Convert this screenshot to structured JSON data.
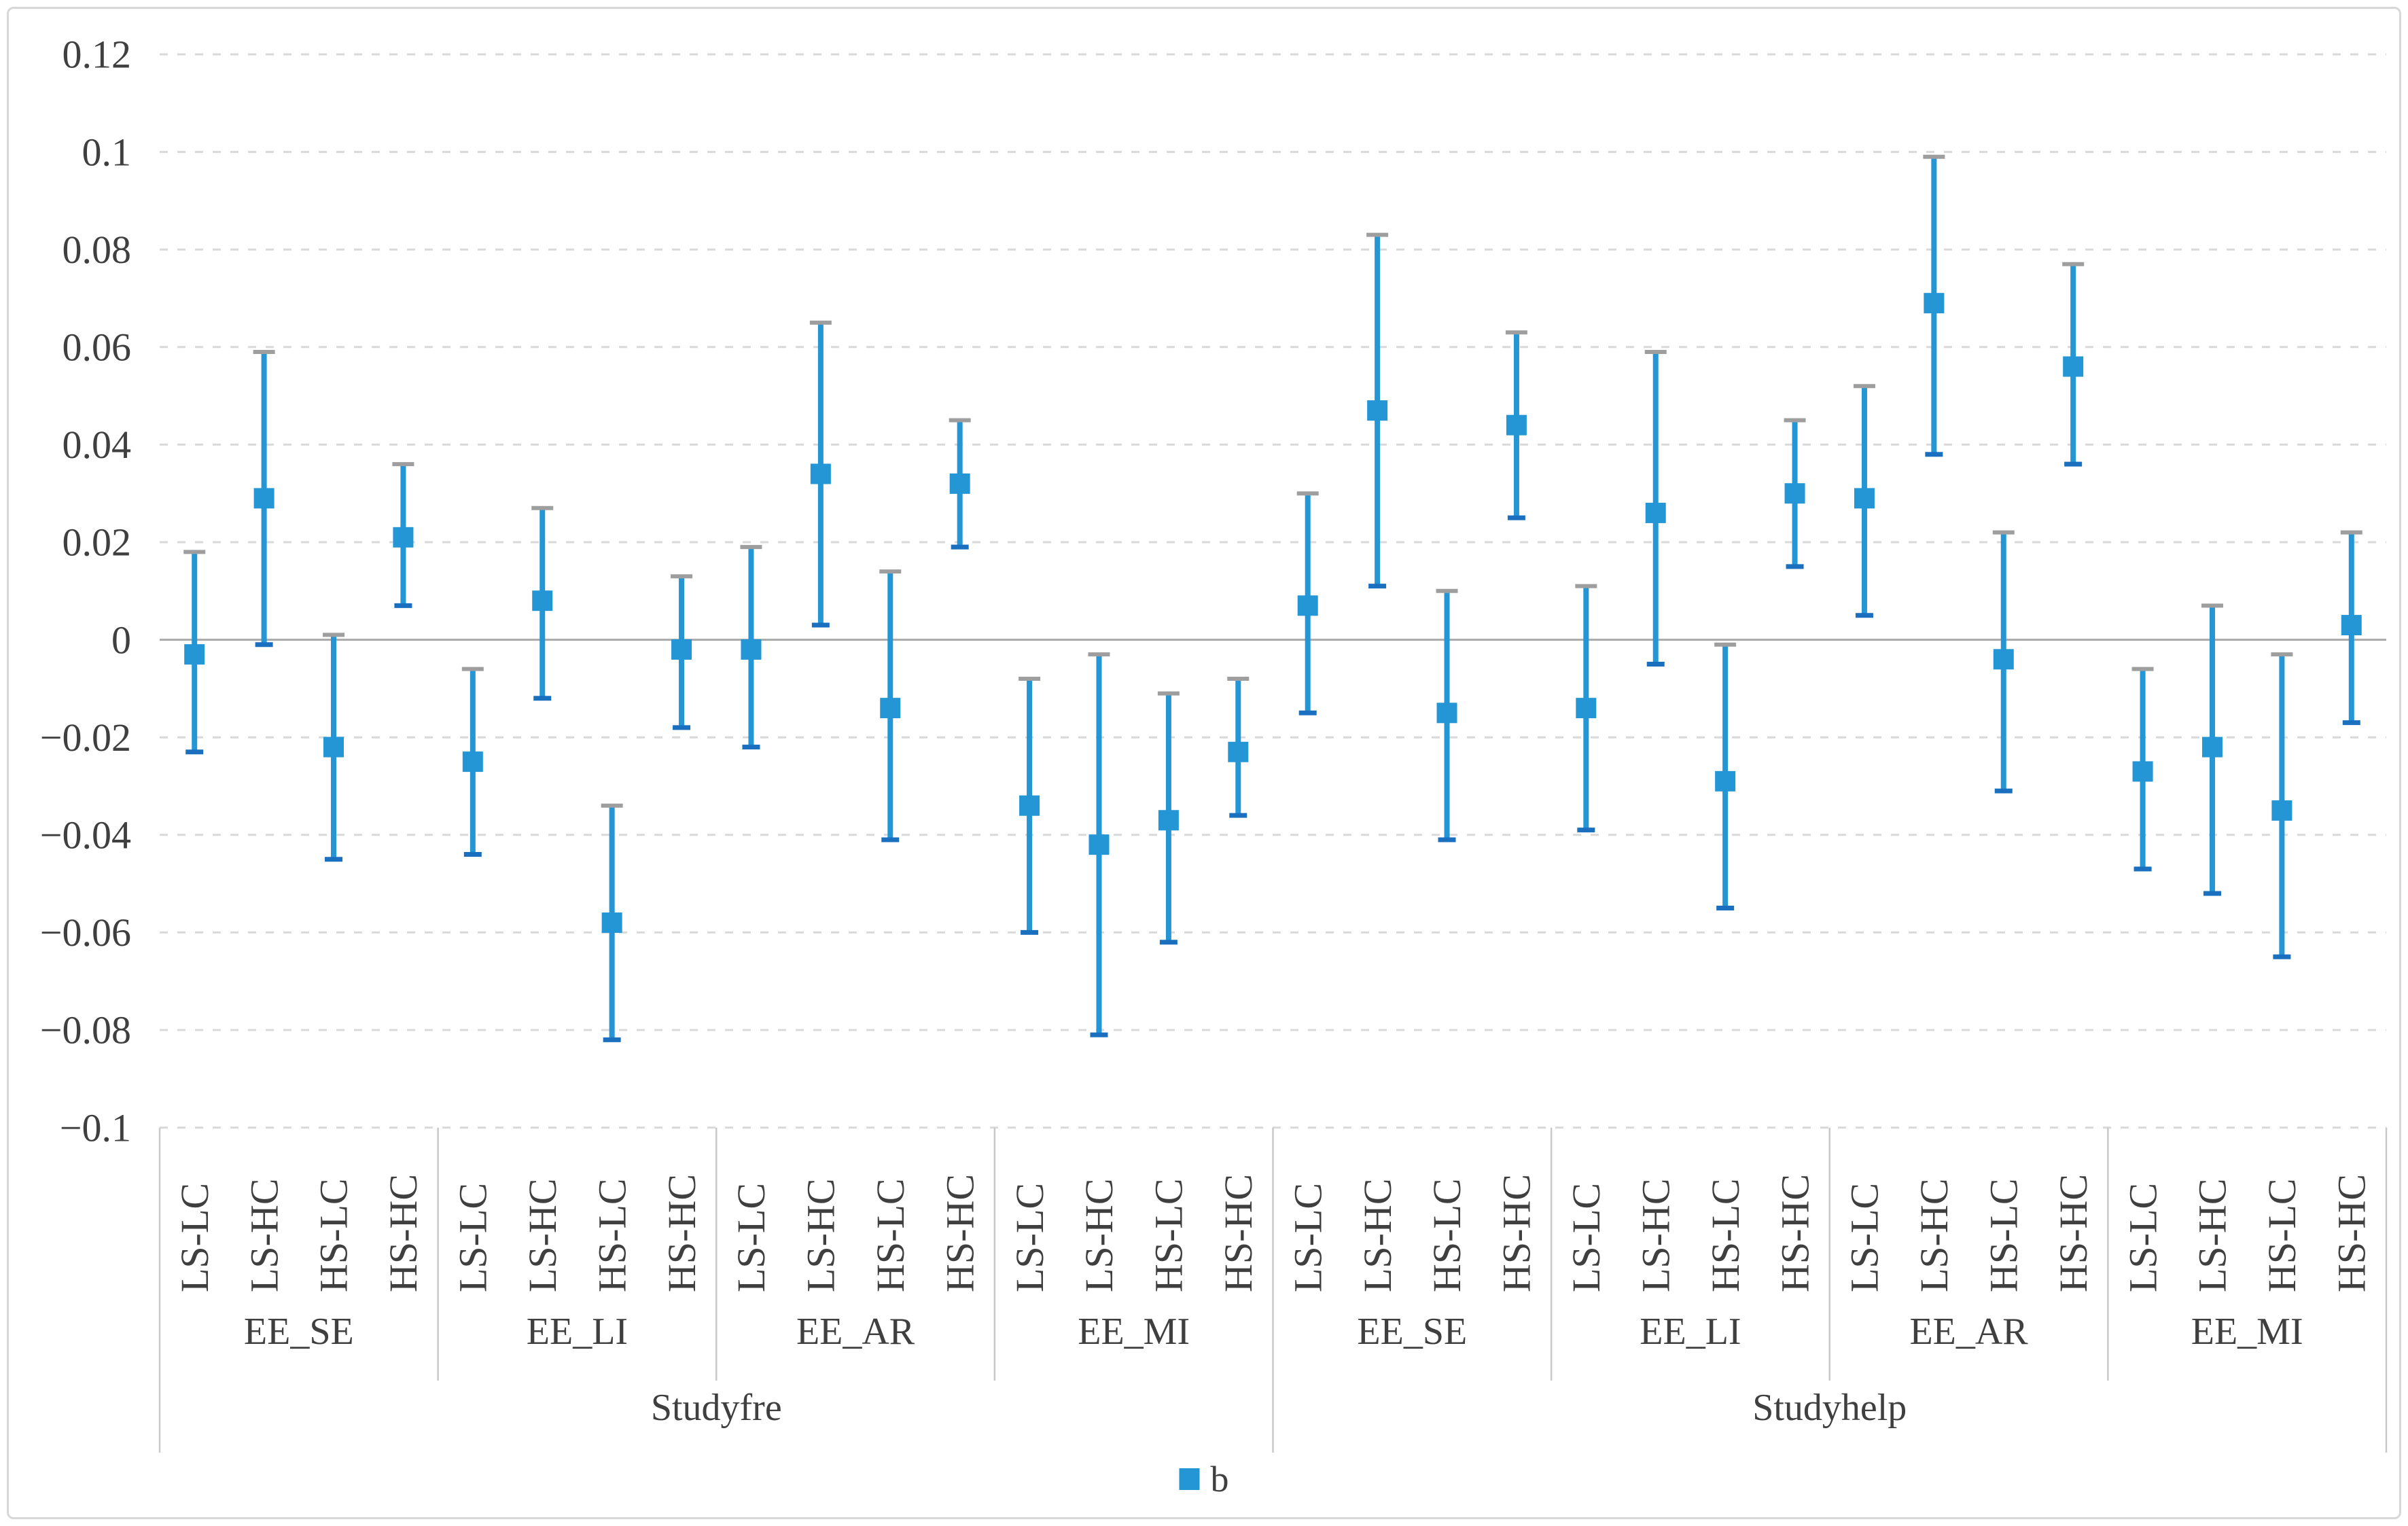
{
  "legend": {
    "label": "b"
  },
  "colors": {
    "series_blue": "#2496d5",
    "bottom_cap_blue": "#1a6fbf",
    "top_cap_gray": "#9e9e9e",
    "gridline": "#d9d9d9",
    "zero_line": "#a9a9a9",
    "separator": "#c9c9c9",
    "text": "#3f3f3f"
  },
  "chart_data": {
    "type": "scatter",
    "subtype": "point-estimates-with-error-bars",
    "title": "",
    "series_name": "b",
    "legend_position": "bottom",
    "grid": true,
    "ylim": [
      -0.1,
      0.12
    ],
    "y_tick_step": 0.02,
    "y_tick_values": [
      0.12,
      0.1,
      0.08,
      0.06,
      0.04,
      0.02,
      0,
      -0.02,
      -0.04,
      -0.06,
      -0.08,
      -0.1
    ],
    "y_tick_labels": [
      "0.12",
      "0.1",
      "0.08",
      "0.06",
      "0.04",
      "0.02",
      "0",
      "−0.02",
      "−0.04",
      "−0.06",
      "−0.08",
      "−0.1"
    ],
    "x_axis": {
      "level1_pattern": [
        "LS-LC",
        "LS-HC",
        "HS-LC",
        "HS-HC"
      ],
      "level2_groups": [
        "EE_SE",
        "EE_LI",
        "EE_AR",
        "EE_MI",
        "EE_SE",
        "EE_LI",
        "EE_AR",
        "EE_MI"
      ],
      "level3_groups": [
        "Studyfre",
        "Studyhelp"
      ]
    },
    "points": [
      {
        "study": "Studyfre",
        "panel": "EE_SE",
        "condition": "LS-LC",
        "b": -0.003,
        "ci_low": -0.023,
        "ci_high": 0.018
      },
      {
        "study": "Studyfre",
        "panel": "EE_SE",
        "condition": "LS-HC",
        "b": 0.029,
        "ci_low": -0.001,
        "ci_high": 0.059
      },
      {
        "study": "Studyfre",
        "panel": "EE_SE",
        "condition": "HS-LC",
        "b": -0.022,
        "ci_low": -0.045,
        "ci_high": 0.001
      },
      {
        "study": "Studyfre",
        "panel": "EE_SE",
        "condition": "HS-HC",
        "b": 0.021,
        "ci_low": 0.007,
        "ci_high": 0.036
      },
      {
        "study": "Studyfre",
        "panel": "EE_LI",
        "condition": "LS-LC",
        "b": -0.025,
        "ci_low": -0.044,
        "ci_high": -0.006
      },
      {
        "study": "Studyfre",
        "panel": "EE_LI",
        "condition": "LS-HC",
        "b": 0.008,
        "ci_low": -0.012,
        "ci_high": 0.027
      },
      {
        "study": "Studyfre",
        "panel": "EE_LI",
        "condition": "HS-LC",
        "b": -0.058,
        "ci_low": -0.082,
        "ci_high": -0.034
      },
      {
        "study": "Studyfre",
        "panel": "EE_LI",
        "condition": "HS-HC",
        "b": -0.002,
        "ci_low": -0.018,
        "ci_high": 0.013
      },
      {
        "study": "Studyfre",
        "panel": "EE_AR",
        "condition": "LS-LC",
        "b": -0.002,
        "ci_low": -0.022,
        "ci_high": 0.019
      },
      {
        "study": "Studyfre",
        "panel": "EE_AR",
        "condition": "LS-HC",
        "b": 0.034,
        "ci_low": 0.003,
        "ci_high": 0.065
      },
      {
        "study": "Studyfre",
        "panel": "EE_AR",
        "condition": "HS-LC",
        "b": -0.014,
        "ci_low": -0.041,
        "ci_high": 0.014
      },
      {
        "study": "Studyfre",
        "panel": "EE_AR",
        "condition": "HS-HC",
        "b": 0.032,
        "ci_low": 0.019,
        "ci_high": 0.045
      },
      {
        "study": "Studyfre",
        "panel": "EE_MI",
        "condition": "LS-LC",
        "b": -0.034,
        "ci_low": -0.06,
        "ci_high": -0.008
      },
      {
        "study": "Studyfre",
        "panel": "EE_MI",
        "condition": "LS-HC",
        "b": -0.042,
        "ci_low": -0.081,
        "ci_high": -0.003
      },
      {
        "study": "Studyfre",
        "panel": "EE_MI",
        "condition": "HS-LC",
        "b": -0.037,
        "ci_low": -0.062,
        "ci_high": -0.011
      },
      {
        "study": "Studyfre",
        "panel": "EE_MI",
        "condition": "HS-HC",
        "b": -0.023,
        "ci_low": -0.036,
        "ci_high": -0.008
      },
      {
        "study": "Studyhelp",
        "panel": "EE_SE",
        "condition": "LS-LC",
        "b": 0.007,
        "ci_low": -0.015,
        "ci_high": 0.03
      },
      {
        "study": "Studyhelp",
        "panel": "EE_SE",
        "condition": "LS-HC",
        "b": 0.047,
        "ci_low": 0.011,
        "ci_high": 0.083
      },
      {
        "study": "Studyhelp",
        "panel": "EE_SE",
        "condition": "HS-LC",
        "b": -0.015,
        "ci_low": -0.041,
        "ci_high": 0.01
      },
      {
        "study": "Studyhelp",
        "panel": "EE_SE",
        "condition": "HS-HC",
        "b": 0.044,
        "ci_low": 0.025,
        "ci_high": 0.063
      },
      {
        "study": "Studyhelp",
        "panel": "EE_LI",
        "condition": "LS-LC",
        "b": -0.014,
        "ci_low": -0.039,
        "ci_high": 0.011
      },
      {
        "study": "Studyhelp",
        "panel": "EE_LI",
        "condition": "LS-HC",
        "b": 0.026,
        "ci_low": -0.005,
        "ci_high": 0.059
      },
      {
        "study": "Studyhelp",
        "panel": "EE_LI",
        "condition": "HS-LC",
        "b": -0.029,
        "ci_low": -0.055,
        "ci_high": -0.001
      },
      {
        "study": "Studyhelp",
        "panel": "EE_LI",
        "condition": "HS-HC",
        "b": 0.03,
        "ci_low": 0.015,
        "ci_high": 0.045
      },
      {
        "study": "Studyhelp",
        "panel": "EE_AR",
        "condition": "LS-LC",
        "b": 0.029,
        "ci_low": 0.005,
        "ci_high": 0.052
      },
      {
        "study": "Studyhelp",
        "panel": "EE_AR",
        "condition": "LS-HC",
        "b": 0.069,
        "ci_low": 0.038,
        "ci_high": 0.099
      },
      {
        "study": "Studyhelp",
        "panel": "EE_AR",
        "condition": "HS-LC",
        "b": -0.004,
        "ci_low": -0.031,
        "ci_high": 0.022
      },
      {
        "study": "Studyhelp",
        "panel": "EE_AR",
        "condition": "HS-HC",
        "b": 0.056,
        "ci_low": 0.036,
        "ci_high": 0.077
      },
      {
        "study": "Studyhelp",
        "panel": "EE_MI",
        "condition": "LS-LC",
        "b": -0.027,
        "ci_low": -0.047,
        "ci_high": -0.006
      },
      {
        "study": "Studyhelp",
        "panel": "EE_MI",
        "condition": "LS-HC",
        "b": -0.022,
        "ci_low": -0.052,
        "ci_high": 0.007
      },
      {
        "study": "Studyhelp",
        "panel": "EE_MI",
        "condition": "HS-LC",
        "b": -0.035,
        "ci_low": -0.065,
        "ci_high": -0.003
      },
      {
        "study": "Studyhelp",
        "panel": "EE_MI",
        "condition": "HS-HC",
        "b": 0.003,
        "ci_low": -0.017,
        "ci_high": 0.022
      }
    ]
  }
}
